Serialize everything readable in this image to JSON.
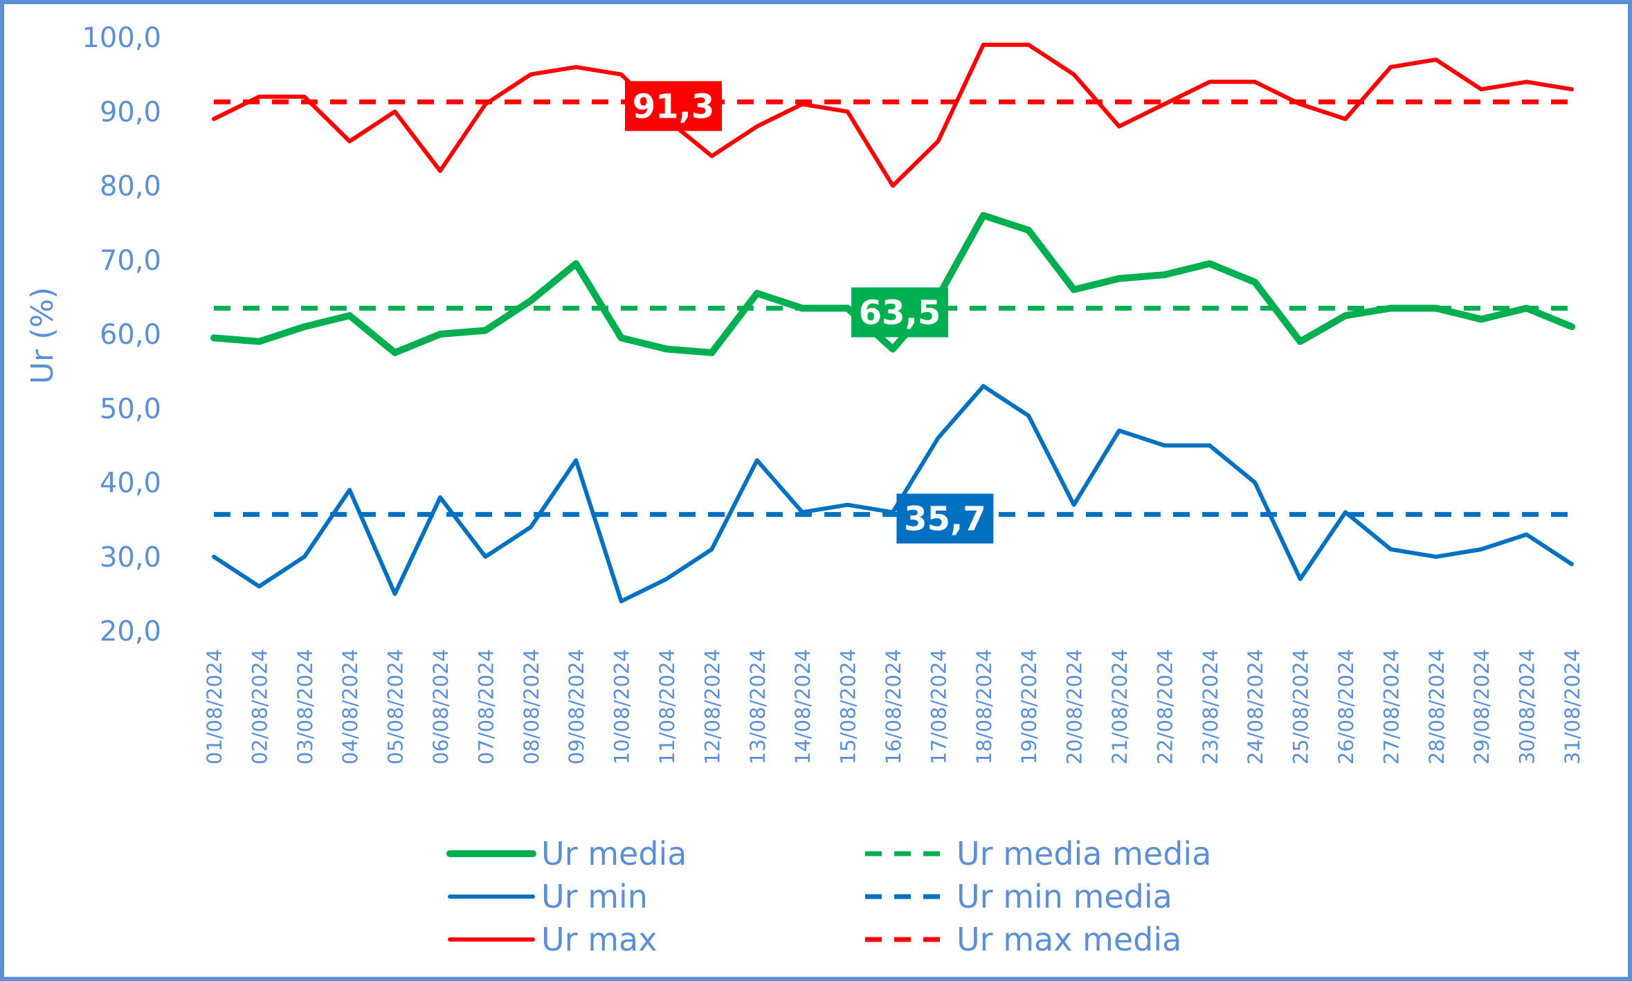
{
  "chart_data": {
    "type": "line",
    "title": "",
    "xlabel": "",
    "ylabel": "Ur (%)",
    "ylim": [
      20,
      100
    ],
    "yticks": [
      "20,0",
      "30,0",
      "40,0",
      "50,0",
      "60,0",
      "70,0",
      "80,0",
      "90,0",
      "100,0"
    ],
    "grid": false,
    "legend_position": "bottom",
    "categories": [
      "01/08/2024",
      "02/08/2024",
      "03/08/2024",
      "04/08/2024",
      "05/08/2024",
      "06/08/2024",
      "07/08/2024",
      "08/08/2024",
      "09/08/2024",
      "10/08/2024",
      "11/08/2024",
      "12/08/2024",
      "13/08/2024",
      "14/08/2024",
      "15/08/2024",
      "16/08/2024",
      "17/08/2024",
      "18/08/2024",
      "19/08/2024",
      "20/08/2024",
      "21/08/2024",
      "22/08/2024",
      "23/08/2024",
      "24/08/2024",
      "25/08/2024",
      "26/08/2024",
      "27/08/2024",
      "28/08/2024",
      "29/08/2024",
      "30/08/2024",
      "31/08/2024"
    ],
    "series": [
      {
        "name": "Ur media",
        "style": "solid",
        "color": "#00b050",
        "values": [
          59.5,
          59,
          61,
          62.5,
          57.5,
          60,
          60.5,
          64.5,
          69.5,
          59.5,
          58,
          57.5,
          65.5,
          63.5,
          63.5,
          58,
          65,
          76,
          74,
          66,
          67.5,
          68,
          69.5,
          67,
          59,
          62.5,
          63.5,
          63.5,
          62,
          63.5,
          61
        ]
      },
      {
        "name": "Ur min",
        "style": "solid",
        "color": "#0070c0",
        "values": [
          30,
          26,
          30,
          39,
          25,
          38,
          30,
          34,
          43,
          24,
          27,
          31,
          43,
          36,
          37,
          36,
          46,
          53,
          49,
          37,
          47,
          45,
          45,
          40,
          27,
          36,
          31,
          30,
          31,
          33,
          29
        ]
      },
      {
        "name": "Ur max",
        "style": "solid",
        "color": "#ff0000",
        "values": [
          89,
          92,
          92,
          86,
          90,
          82,
          91,
          95,
          96,
          95,
          89,
          84,
          88,
          91,
          90,
          80,
          86,
          99,
          99,
          95,
          88,
          91,
          94,
          94,
          91,
          89,
          96,
          97,
          93,
          94,
          93
        ]
      },
      {
        "name": "Ur media media",
        "style": "dashed",
        "color": "#00b050",
        "value": 63.5,
        "label": "63,5",
        "label_at": "16/08/2024"
      },
      {
        "name": "Ur min media",
        "style": "dashed",
        "color": "#0070c0",
        "value": 35.7,
        "label": "35,7",
        "label_at": "17/08/2024"
      },
      {
        "name": "Ur max media",
        "style": "dashed",
        "color": "#ff0000",
        "value": 91.3,
        "label": "91,3",
        "label_at": "11/08/2024"
      }
    ]
  }
}
